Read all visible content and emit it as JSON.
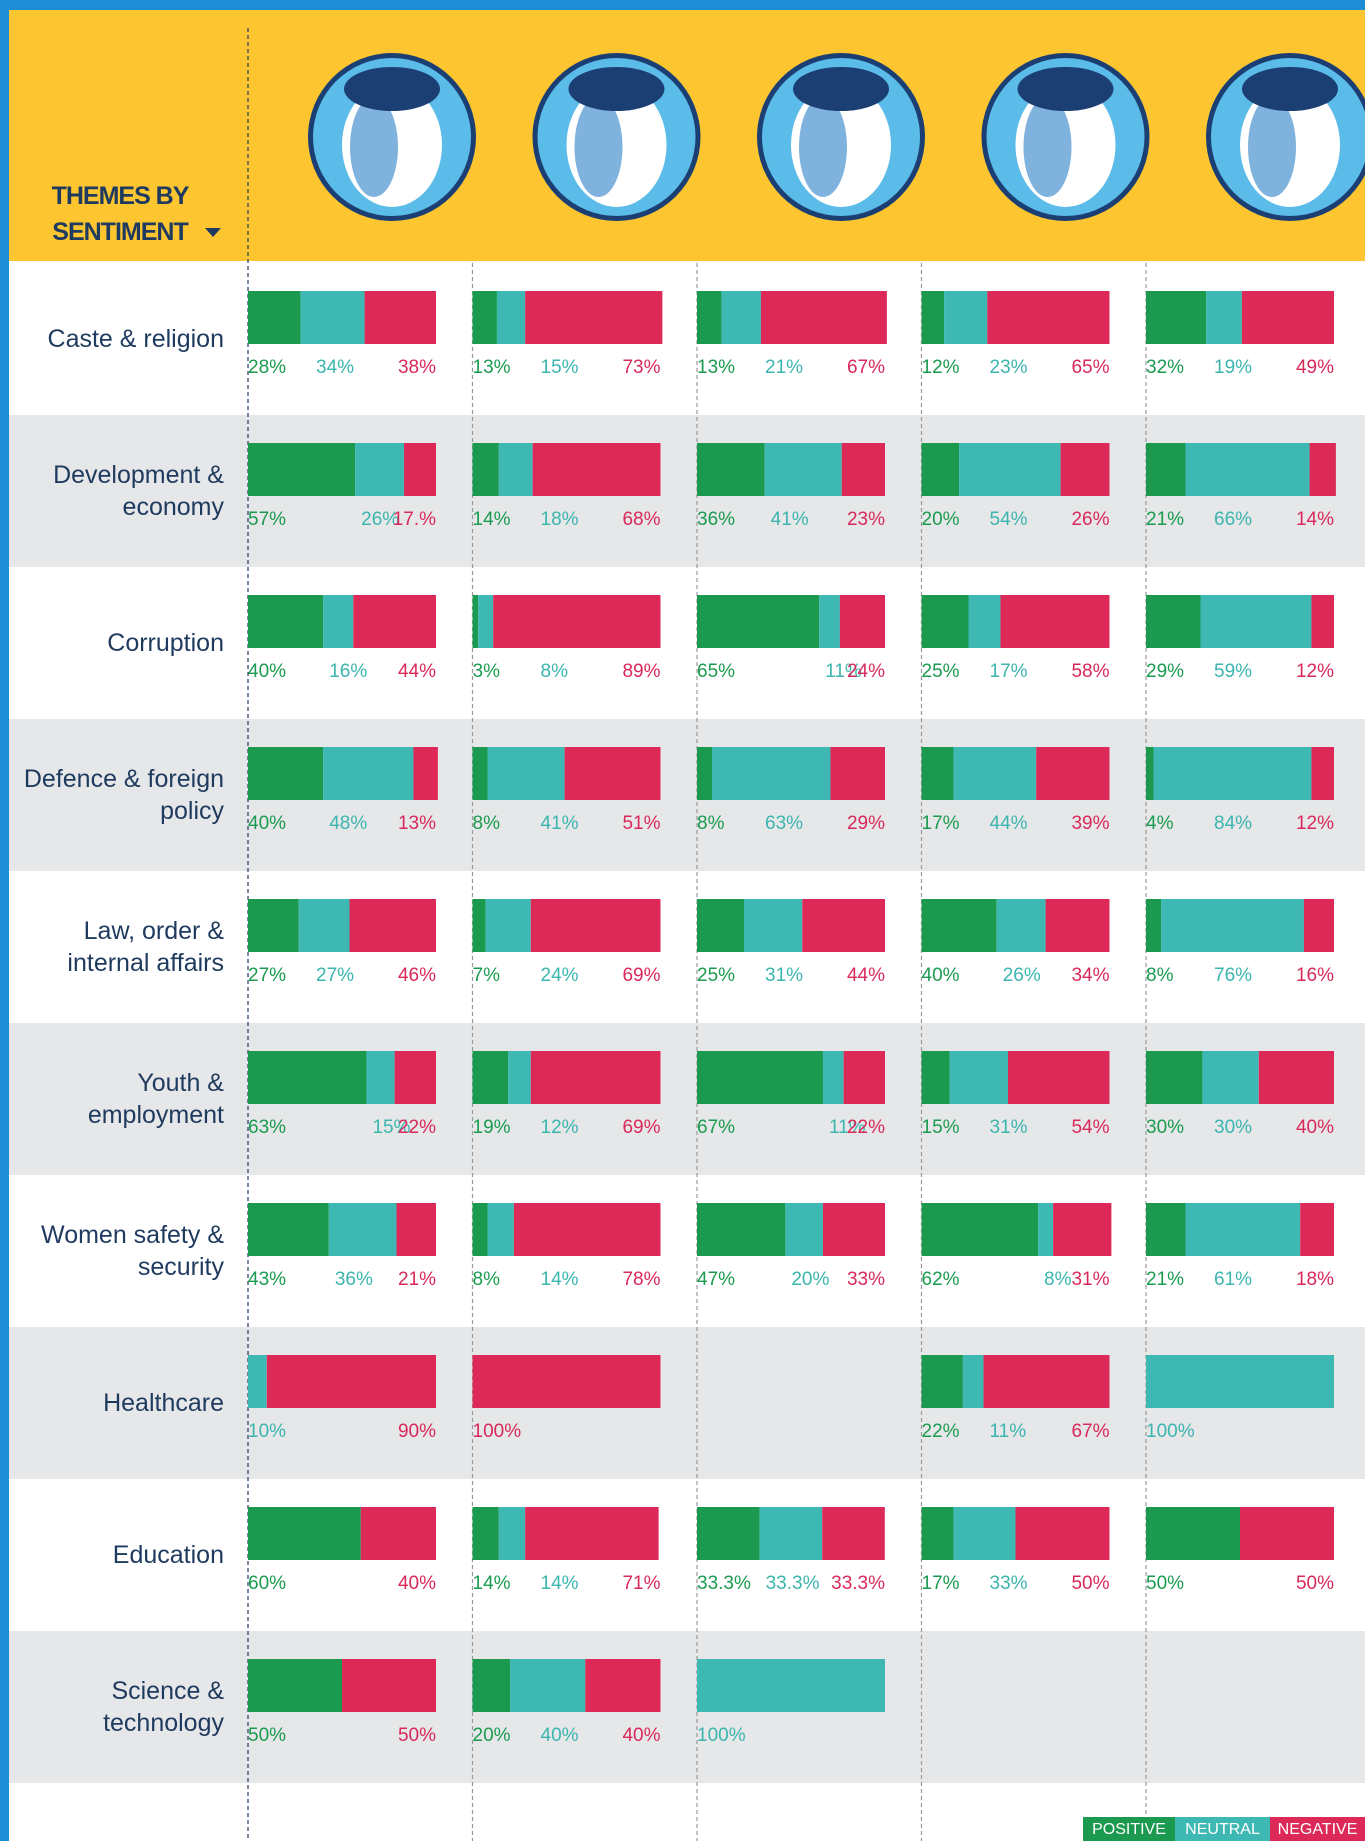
{
  "chart_data": {
    "type": "bar",
    "stacked": true,
    "title": "THEMES BY SENTIMENT",
    "categories": [
      "Caste & religion",
      "Development & economy",
      "Corruption",
      "Defence & foreign policy",
      "Law, order & internal affairs",
      "Youth & employment",
      "Women safety & security",
      "Healthcare",
      "Education",
      "Science & technology"
    ],
    "xlim": [
      0,
      100
    ],
    "series": [
      {
        "name": "POSITIVE",
        "color": "#1b9a4f",
        "values": [
          [
            28,
            13,
            13,
            12,
            32
          ],
          [
            57,
            14,
            36,
            20,
            21
          ],
          [
            40,
            3,
            65,
            25,
            29
          ],
          [
            40,
            8,
            8,
            17,
            4
          ],
          [
            27,
            7,
            25,
            40,
            8
          ],
          [
            63,
            19,
            67,
            15,
            30
          ],
          [
            43,
            8,
            47,
            62,
            21
          ],
          [
            null,
            null,
            null,
            22,
            null
          ],
          [
            60,
            14,
            33.3,
            17,
            50
          ],
          [
            50,
            20,
            null,
            null,
            null
          ]
        ],
        "value_labels": [
          [
            "28%",
            "13%",
            "13%",
            "12%",
            "32%"
          ],
          [
            "57%",
            "14%",
            "36%",
            "20%",
            "21%"
          ],
          [
            "40%",
            "3%",
            "65%",
            "25%",
            "29%"
          ],
          [
            "40%",
            "8%",
            "8%",
            "17%",
            "4%"
          ],
          [
            "27%",
            "7%",
            "25%",
            "40%",
            "8%"
          ],
          [
            "63%",
            "19%",
            "67%",
            "15%",
            "30%"
          ],
          [
            "43%",
            "8%",
            "47%",
            "62%",
            "21%"
          ],
          [
            null,
            null,
            null,
            "22%",
            null
          ],
          [
            "60%",
            "14%",
            "33.3%",
            "17%",
            "50%"
          ],
          [
            "50%",
            "20%",
            null,
            null,
            null
          ]
        ]
      },
      {
        "name": "NEUTRAL",
        "color": "#3eb8b2",
        "values": [
          [
            34,
            15,
            21,
            23,
            19
          ],
          [
            26,
            18,
            41,
            54,
            66
          ],
          [
            16,
            8,
            11,
            17,
            59
          ],
          [
            48,
            41,
            63,
            44,
            84
          ],
          [
            27,
            24,
            31,
            26,
            76
          ],
          [
            15,
            12,
            11,
            31,
            30
          ],
          [
            36,
            14,
            20,
            8,
            61
          ],
          [
            10,
            null,
            null,
            11,
            100
          ],
          [
            null,
            14,
            33.3,
            33,
            null
          ],
          [
            null,
            40,
            100,
            null,
            null
          ]
        ],
        "value_labels": [
          [
            "34%",
            "15%",
            "21%",
            "23%",
            "19%"
          ],
          [
            "26%",
            "18%",
            "41%",
            "54%",
            "66%"
          ],
          [
            "16%",
            "8%",
            "11%",
            "17%",
            "59%"
          ],
          [
            "48%",
            "41%",
            "63%",
            "44%",
            "84%"
          ],
          [
            "27%",
            "24%",
            "31%",
            "26%",
            "76%"
          ],
          [
            "15%",
            "12%",
            "11%",
            "31%",
            "30%"
          ],
          [
            "36%",
            "14%",
            "20%",
            "8%",
            "61%"
          ],
          [
            "10%",
            null,
            null,
            "11%",
            "100%"
          ],
          [
            null,
            "14%",
            "33.3%",
            "33%",
            null
          ],
          [
            null,
            "40%",
            "100%",
            null,
            null
          ]
        ]
      },
      {
        "name": "NEGATIVE",
        "color": "#dd2957",
        "values": [
          [
            38,
            73,
            67,
            65,
            49
          ],
          [
            17,
            68,
            23,
            26,
            14
          ],
          [
            44,
            89,
            24,
            58,
            12
          ],
          [
            13,
            51,
            29,
            39,
            12
          ],
          [
            46,
            69,
            44,
            34,
            16
          ],
          [
            22,
            69,
            22,
            54,
            40
          ],
          [
            21,
            78,
            33,
            31,
            18
          ],
          [
            90,
            100,
            null,
            67,
            null
          ],
          [
            40,
            71,
            33.3,
            50,
            50
          ],
          [
            50,
            40,
            null,
            null,
            null
          ]
        ],
        "value_labels": [
          [
            "38%",
            "73%",
            "67%",
            "65%",
            "49%"
          ],
          [
            "17.%",
            "68%",
            "23%",
            "26%",
            "14%"
          ],
          [
            "44%",
            "89%",
            "24%",
            "58%",
            "12%"
          ],
          [
            "13%",
            "51%",
            "29%",
            "39%",
            "12%"
          ],
          [
            "46%",
            "69%",
            "44%",
            "34%",
            "16%"
          ],
          [
            "22%",
            "69%",
            "22%",
            "54%",
            "40%"
          ],
          [
            "21%",
            "78%",
            "33%",
            "31%",
            "18%"
          ],
          [
            "90%",
            "100%",
            null,
            "67%",
            null
          ],
          [
            "40%",
            "71%",
            "33.3%",
            "50%",
            "50%"
          ],
          [
            "50%",
            "40%",
            null,
            null,
            null
          ]
        ]
      }
    ]
  }
}
